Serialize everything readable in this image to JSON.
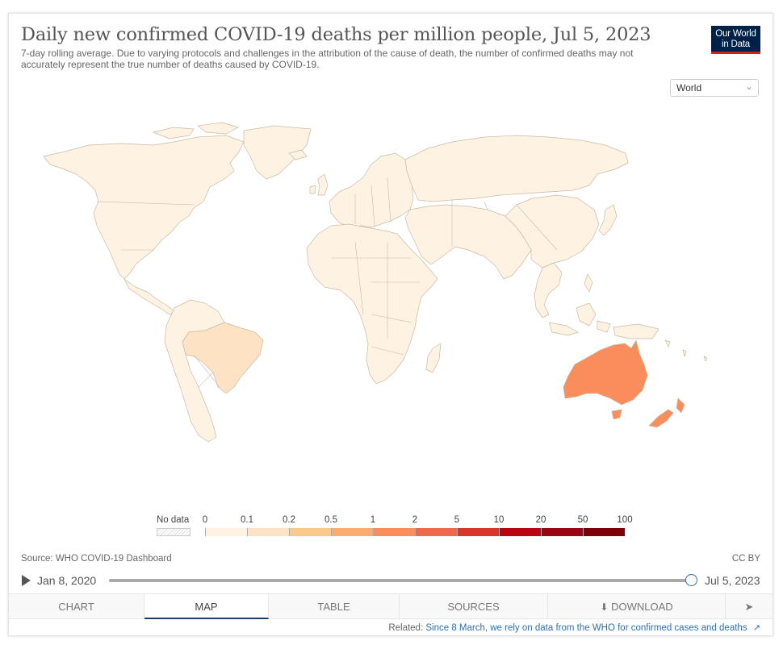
{
  "header": {
    "title": "Daily new confirmed COVID-19 deaths per million people, Jul 5, 2023",
    "subtitle": "7-day rolling average. Due to varying protocols and challenges in the attribution of the cause of death, the number of confirmed deaths may not accurately represent the true number of deaths caused by COVID-19.",
    "logo_line1": "Our World",
    "logo_line2": "in Data",
    "logo_colors": {
      "background": "#002147",
      "underline": "#ce261e"
    }
  },
  "region_select": {
    "value": "World",
    "icon": "chevron-down-icon"
  },
  "map": {
    "colors": {
      "very_low": "#fef2e3",
      "low": "#fde3c3",
      "high": "#f98d5b",
      "border": "#c9b9a2"
    },
    "highlighted_regions": [
      {
        "region": "Brazil",
        "color": "#fde3c3"
      },
      {
        "region": "Australia",
        "color": "#f98d5b"
      },
      {
        "region": "New Zealand",
        "color": "#f98d5b"
      }
    ]
  },
  "legend": {
    "no_data_label": "No data",
    "ticks": [
      "0",
      "0.1",
      "0.2",
      "0.5",
      "1",
      "2",
      "5",
      "10",
      "20",
      "50",
      "100"
    ],
    "bin_colors": [
      "#fef2e3",
      "#fde3c3",
      "#fcc98c",
      "#fbab6f",
      "#f98d5b",
      "#ef684d",
      "#d8362b",
      "#b8050f",
      "#990513",
      "#7e0007"
    ]
  },
  "footer": {
    "source": "Source: WHO COVID-19 Dashboard",
    "license": "CC BY",
    "related_prefix": "Related:",
    "related_link": "Since 8 March, we rely on data from the WHO for confirmed cases and deaths"
  },
  "timeline": {
    "start": "Jan 8, 2020",
    "end": "Jul 5, 2023",
    "position": 1.0,
    "accent": "#2f6fb0"
  },
  "tabs": [
    {
      "label": "Chart",
      "active": false
    },
    {
      "label": "Map",
      "active": true
    },
    {
      "label": "Table",
      "active": false
    },
    {
      "label": "Sources",
      "active": false
    },
    {
      "label": "Download",
      "active": false
    }
  ]
}
